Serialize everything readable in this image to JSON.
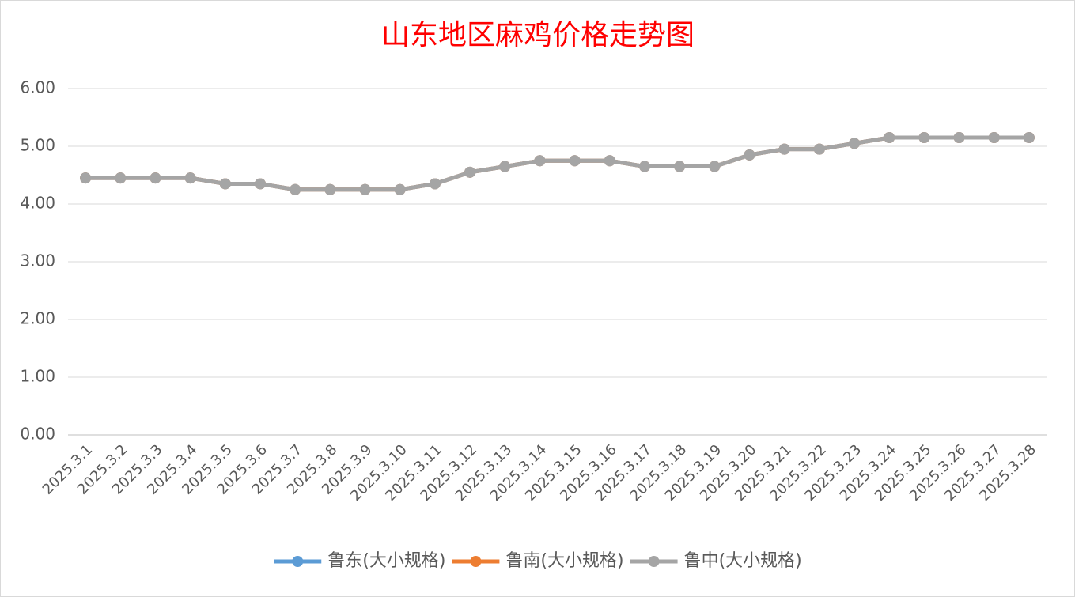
{
  "chart_data": {
    "type": "line",
    "title": "山东地区麻鸡价格走势图",
    "categories": [
      "2025.3.1",
      "2025.3.2",
      "2025.3.3",
      "2025.3.4",
      "2025.3.5",
      "2025.3.6",
      "2025.3.7",
      "2025.3.8",
      "2025.3.9",
      "2025.3.10",
      "2025.3.11",
      "2025.3.12",
      "2025.3.13",
      "2025.3.14",
      "2025.3.15",
      "2025.3.16",
      "2025.3.17",
      "2025.3.18",
      "2025.3.19",
      "2025.3.20",
      "2025.3.21",
      "2025.3.22",
      "2025.3.23",
      "2025.3.24",
      "2025.3.25",
      "2025.3.26",
      "2025.3.27",
      "2025.3.28"
    ],
    "series": [
      {
        "name": "鲁东(大小规格)",
        "color": "#5b9bd5",
        "values": [
          4.45,
          4.45,
          4.45,
          4.45,
          4.35,
          4.35,
          4.25,
          4.25,
          4.25,
          4.25,
          4.35,
          4.55,
          4.65,
          4.75,
          4.75,
          4.75,
          4.65,
          4.65,
          4.65,
          4.85,
          4.95,
          4.95,
          5.05,
          5.15,
          5.15,
          5.15,
          5.15,
          5.15
        ]
      },
      {
        "name": "鲁南(大小规格)",
        "color": "#ed7d31",
        "values": [
          4.45,
          4.45,
          4.45,
          4.45,
          4.35,
          4.35,
          4.25,
          4.25,
          4.25,
          4.25,
          4.35,
          4.55,
          4.65,
          4.75,
          4.75,
          4.75,
          4.65,
          4.65,
          4.65,
          4.85,
          4.95,
          4.95,
          5.05,
          5.15,
          5.15,
          5.15,
          5.15,
          5.15
        ]
      },
      {
        "name": "鲁中(大小规格)",
        "color": "#a5a5a5",
        "values": [
          4.45,
          4.45,
          4.45,
          4.45,
          4.35,
          4.35,
          4.25,
          4.25,
          4.25,
          4.25,
          4.35,
          4.55,
          4.65,
          4.75,
          4.75,
          4.75,
          4.65,
          4.65,
          4.65,
          4.85,
          4.95,
          4.95,
          5.05,
          5.15,
          5.15,
          5.15,
          5.15,
          5.15
        ]
      }
    ],
    "ylim": [
      0,
      6
    ],
    "yticks": [
      {
        "value": 0,
        "label": "0.00"
      },
      {
        "value": 1,
        "label": "1.00"
      },
      {
        "value": 2,
        "label": "2.00"
      },
      {
        "value": 3,
        "label": "3.00"
      },
      {
        "value": 4,
        "label": "4.00"
      },
      {
        "value": 5,
        "label": "5.00"
      },
      {
        "value": 6,
        "label": "6.00"
      }
    ],
    "grid": true,
    "legend": "bottom"
  }
}
